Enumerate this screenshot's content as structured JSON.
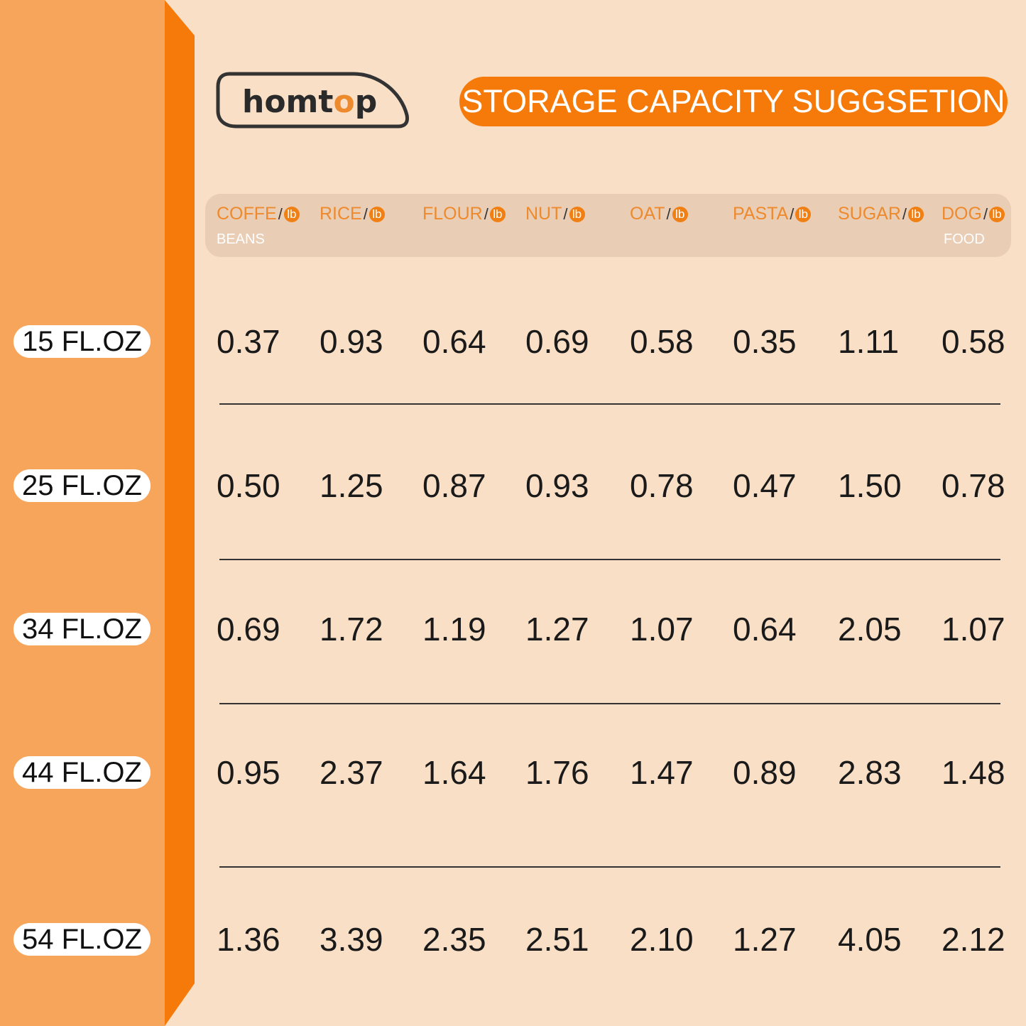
{
  "brand": {
    "logo_text": "homtop"
  },
  "title": "STORAGE CAPACITY SUGGSETION",
  "colors": {
    "panel": "#F7A55A",
    "accent": "#F57A0A",
    "background": "#F9DFC6",
    "header_bar": "#E9CDB5"
  },
  "unit_label": "lb",
  "columns": [
    {
      "name": "COFFE",
      "sub": "BEANS"
    },
    {
      "name": "RICE",
      "sub": ""
    },
    {
      "name": "FLOUR",
      "sub": ""
    },
    {
      "name": "NUT",
      "sub": ""
    },
    {
      "name": "OAT",
      "sub": ""
    },
    {
      "name": "PASTA",
      "sub": ""
    },
    {
      "name": "SUGAR",
      "sub": ""
    },
    {
      "name": "DOG",
      "sub": "FOOD"
    }
  ],
  "rows": [
    {
      "size": "15 FL.OZ",
      "values": [
        "0.37",
        "0.93",
        "0.64",
        "0.69",
        "0.58",
        "0.35",
        "1.11",
        "0.58"
      ]
    },
    {
      "size": "25 FL.OZ",
      "values": [
        "0.50",
        "1.25",
        "0.87",
        "0.93",
        "0.78",
        "0.47",
        "1.50",
        "0.78"
      ]
    },
    {
      "size": "34 FL.OZ",
      "values": [
        "0.69",
        "1.72",
        "1.19",
        "1.27",
        "1.07",
        "0.64",
        "2.05",
        "1.07"
      ]
    },
    {
      "size": "44 FL.OZ",
      "values": [
        "0.95",
        "2.37",
        "1.64",
        "1.76",
        "1.47",
        "0.89",
        "2.83",
        "1.48"
      ]
    },
    {
      "size": "54 FL.OZ",
      "values": [
        "1.36",
        "3.39",
        "2.35",
        "2.51",
        "2.10",
        "1.27",
        "4.05",
        "2.12"
      ]
    }
  ]
}
